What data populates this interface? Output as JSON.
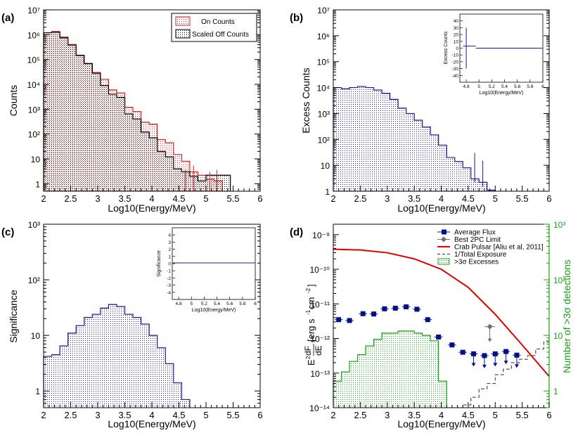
{
  "colors": {
    "on_counts": "#d62020",
    "off_counts": "#000000",
    "excess": "#1a1a8c",
    "avg_flux": "#00108c",
    "pc_limit": "#707070",
    "crab": "#e00000",
    "exposure": "#303030",
    "detections": "#18a018",
    "green_axis": "#18a018"
  },
  "chart_data": [
    {
      "type": "histogram",
      "panel_label": "(a)",
      "ylabel": "Counts",
      "xlabel": "Log10(Energy/MeV)",
      "xlim": [
        2,
        6
      ],
      "ylim": [
        0.5,
        10000000.0
      ],
      "yscale": "log",
      "xticks": [
        "2",
        "2.5",
        "3",
        "3.5",
        "4",
        "4.5",
        "5",
        "5.5",
        "6"
      ],
      "yticks": [
        "1",
        "10",
        "10²",
        "10³",
        "10⁴",
        "10⁵",
        "10⁶",
        "10⁷"
      ],
      "bin_edges": [
        2.0,
        2.15,
        2.3,
        2.45,
        2.6,
        2.75,
        2.9,
        3.05,
        3.2,
        3.35,
        3.5,
        3.65,
        3.8,
        3.95,
        4.1,
        4.25,
        4.4,
        4.55,
        4.7,
        4.85,
        5.0,
        5.15,
        5.3,
        5.45
      ],
      "legend": {
        "on": "On Counts",
        "off": "Scaled Off Counts"
      },
      "series": [
        {
          "name": "On Counts",
          "values": [
            1200000,
            1350000,
            800000,
            400000,
            150000,
            70000,
            30000,
            16000,
            6000,
            4500,
            1200,
            800,
            300,
            250,
            60,
            45,
            15,
            8,
            3,
            2.2,
            1.5,
            1.3,
            0
          ]
        },
        {
          "name": "Scaled Off Counts",
          "values": [
            1200000,
            1250000,
            750000,
            380000,
            145000,
            68000,
            28000,
            9000,
            4000,
            3000,
            650,
            400,
            120,
            70,
            20,
            12,
            4,
            3,
            2,
            1.3,
            2.2,
            2.2,
            2.2
          ]
        }
      ]
    },
    {
      "type": "histogram",
      "panel_label": "(b)",
      "ylabel": "Excess Counts",
      "xlabel": "Log10(Energy/MeV)",
      "xlim": [
        2,
        6
      ],
      "ylim": [
        1,
        10000000.0
      ],
      "yscale": "log",
      "xticks": [
        "2",
        "2.5",
        "3",
        "3.5",
        "4",
        "4.5",
        "5",
        "5.5",
        "6"
      ],
      "yticks": [
        "1",
        "10",
        "10²",
        "10³",
        "10⁴",
        "10⁵",
        "10⁶",
        "10⁷"
      ],
      "bin_edges": [
        2.0,
        2.15,
        2.3,
        2.45,
        2.6,
        2.75,
        2.9,
        3.05,
        3.2,
        3.35,
        3.5,
        3.65,
        3.8,
        3.95,
        4.1,
        4.25,
        4.4,
        4.55,
        4.7,
        4.85,
        5.0
      ],
      "values": [
        10000,
        9000,
        10000,
        11000,
        10000,
        8000,
        6000,
        3500,
        1600,
        1000,
        550,
        300,
        150,
        60,
        20,
        14,
        8,
        3,
        2.2,
        1.1
      ],
      "inset": {
        "ylabel": "Excess Counts",
        "xlabel": "Log10(Energy/MeV)",
        "xlim": [
          4.7,
          6
        ],
        "ylim": [
          -50,
          50
        ],
        "xticks": [
          "4.8",
          "5",
          "5.2",
          "5.4",
          "5.6",
          "5.8",
          "6"
        ],
        "yticks": [
          "-40",
          "-30",
          "-20",
          "-10",
          "0",
          "10",
          "20",
          "30",
          "40"
        ],
        "series": [
          {
            "x": [
              4.75,
              4.85
            ],
            "y": [
              3,
              3
            ]
          },
          {
            "x": [
              4.85,
              4.95
            ],
            "y": [
              3,
              3
            ]
          },
          {
            "x": [
              4.95,
              6.0
            ],
            "y": [
              0,
              0
            ]
          }
        ]
      }
    },
    {
      "type": "histogram",
      "panel_label": "(c)",
      "ylabel": "Significance",
      "xlabel": "Log10(Energy/MeV)",
      "xlim": [
        2,
        6
      ],
      "ylim": [
        0.5,
        1000
      ],
      "yscale": "log",
      "xticks": [
        "2",
        "2.5",
        "3",
        "3.5",
        "4",
        "4.5",
        "5",
        "5.5",
        "6"
      ],
      "yticks": [
        "1",
        "10",
        "10²",
        "10³"
      ],
      "bin_edges": [
        2.0,
        2.15,
        2.3,
        2.45,
        2.6,
        2.75,
        2.9,
        3.05,
        3.2,
        3.35,
        3.5,
        3.65,
        3.8,
        3.95,
        4.1,
        4.25,
        4.4,
        4.55,
        4.7
      ],
      "values": [
        4.2,
        4.5,
        6.5,
        11,
        15,
        21,
        24,
        31,
        36,
        33,
        24,
        21,
        16,
        10,
        6,
        3.1,
        1.4,
        0.7
      ],
      "inset": {
        "ylabel": "Significance",
        "xlabel": "Log10(Energy/MeV)",
        "xlim": [
          4.7,
          6
        ],
        "ylim": [
          -5,
          5
        ],
        "xticks": [
          "4.8",
          "5",
          "5.2",
          "5.4",
          "5.6",
          "5.8",
          "6"
        ],
        "yticks": [
          "-4",
          "-3",
          "-2",
          "-1",
          "0",
          "1",
          "2",
          "3",
          "4"
        ],
        "series": [
          {
            "x": [
              4.7,
              6.0
            ],
            "y": [
              0.1,
              0.1
            ]
          }
        ]
      }
    },
    {
      "type": "mixed",
      "panel_label": "(d)",
      "ylabel": "E²dF/dE [erg s⁻¹ cm⁻²]",
      "ylabel_parts": {
        "e": "E",
        "sup2": "2",
        "num": "dF",
        "den": "dE",
        "unit_a": "[erg s",
        "exp1": "-1",
        "unit_b": " cm",
        "exp2": "-2",
        "unit_c": "]"
      },
      "ylabel_right": "Number of >3σ detections",
      "xlabel": "Log10(Energy/MeV)",
      "xlim": [
        2,
        6
      ],
      "ylim": [
        1e-14,
        2e-09
      ],
      "yscale": "log",
      "xticks": [
        "2",
        "2.5",
        "3",
        "3.5",
        "4",
        "4.5",
        "5",
        "5.5",
        "6"
      ],
      "yticks": [
        "10⁻¹⁴",
        "10⁻¹³",
        "10⁻¹²",
        "10⁻¹¹",
        "10⁻¹⁰",
        "10⁻⁹"
      ],
      "y2lim": [
        0.5,
        1000
      ],
      "y2ticks": [
        "1",
        "10",
        "10²",
        "10³"
      ],
      "legend": [
        "Average Flux",
        "Best 2PC Limit",
        "Crab Pulsar [Aliu et al, 2011]",
        "1/Total Exposure",
        ">3σ Excesses"
      ],
      "series": [
        {
          "name": "Average Flux",
          "x": [
            2.1,
            2.3,
            2.55,
            2.75,
            2.95,
            3.15,
            3.35,
            3.55,
            3.75,
            3.95,
            4.2,
            4.4
          ],
          "y": [
            3.5e-12,
            3.3e-12,
            5.2e-12,
            5.1e-12,
            7.2e-12,
            7.5e-12,
            8.2e-12,
            7e-12,
            3.5e-12,
            1.1e-12,
            6.5e-13,
            4e-13
          ],
          "xerr": 0.075
        },
        {
          "name": "Average Flux Upper Limits",
          "x": [
            4.6,
            4.8,
            5.0,
            5.2,
            5.4
          ],
          "y": [
            3.6e-13,
            3.2e-13,
            3.6e-13,
            4.2e-13,
            3.3e-13
          ]
        },
        {
          "name": "Best 2PC Limit",
          "x": [
            4.9
          ],
          "y": [
            2.2e-12
          ],
          "xerr": 0.1
        },
        {
          "name": "Crab Pulsar [Aliu et al, 2011]",
          "x": [
            2.0,
            2.5,
            3.0,
            3.5,
            4.0,
            4.5,
            5.0,
            5.5,
            6.0
          ],
          "y": [
            3.8e-10,
            3.6e-10,
            3e-10,
            2e-10,
            1e-10,
            3e-11,
            5e-12,
            6.5e-13,
            8e-14
          ]
        },
        {
          "name": "1/Total Exposure",
          "x": [
            4.25,
            4.4,
            4.55,
            4.7,
            4.85,
            5.0,
            5.15,
            5.3,
            5.45,
            5.6,
            5.75,
            5.9,
            6.0
          ],
          "y": [
            1e-14,
            1.2e-14,
            2e-14,
            3.5e-14,
            5e-14,
            9e-14,
            1.3e-13,
            2e-13,
            2.5e-13,
            3.2e-13,
            5e-13,
            8e-13,
            8e-13
          ]
        },
        {
          "name": ">3σ Excesses",
          "axis": "right",
          "bin_edges": [
            2.0,
            2.15,
            2.3,
            2.45,
            2.6,
            2.75,
            2.9,
            3.05,
            3.2,
            3.35,
            3.5,
            3.65,
            3.8,
            3.95,
            4.1
          ],
          "values": [
            1.5,
            2.2,
            3.4,
            4.5,
            6.5,
            8.5,
            11,
            11,
            12,
            12,
            11,
            10,
            8,
            1.5
          ]
        }
      ]
    }
  ]
}
